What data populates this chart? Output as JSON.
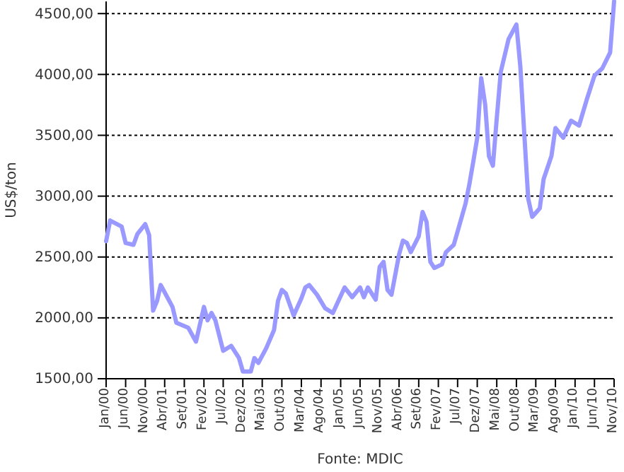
{
  "chart_data": {
    "type": "line",
    "ylabel": "US$/ton",
    "annotations": [
      "Fonte: MDIC"
    ],
    "xlim": [
      "2000-01",
      "2010-11"
    ],
    "xticks": [
      {
        "value": "2000-01",
        "label": "Jan/00"
      },
      {
        "value": "2000-06",
        "label": "Jun/00"
      },
      {
        "value": "2000-11",
        "label": "Nov/00"
      },
      {
        "value": "2001-04",
        "label": "Abr/01"
      },
      {
        "value": "2001-09",
        "label": "Set/01"
      },
      {
        "value": "2002-02",
        "label": "Fev/02"
      },
      {
        "value": "2002-07",
        "label": "Jul/02"
      },
      {
        "value": "2002-12",
        "label": "Dez/02"
      },
      {
        "value": "2003-05",
        "label": "Mai/03"
      },
      {
        "value": "2003-10",
        "label": "Out/03"
      },
      {
        "value": "2004-03",
        "label": "Mar/04"
      },
      {
        "value": "2004-08",
        "label": "Ago/04"
      },
      {
        "value": "2005-01",
        "label": "Jan/05"
      },
      {
        "value": "2005-06",
        "label": "Jun/05"
      },
      {
        "value": "2005-11",
        "label": "Nov/05"
      },
      {
        "value": "2006-04",
        "label": "Abr/06"
      },
      {
        "value": "2006-09",
        "label": "Set/06"
      },
      {
        "value": "2007-02",
        "label": "Fev/07"
      },
      {
        "value": "2007-07",
        "label": "Jul/07"
      },
      {
        "value": "2007-12",
        "label": "Dez/07"
      },
      {
        "value": "2008-05",
        "label": "Mai/08"
      },
      {
        "value": "2008-10",
        "label": "Out/08"
      },
      {
        "value": "2009-03",
        "label": "Mar/09"
      },
      {
        "value": "2009-08",
        "label": "Ago/09"
      },
      {
        "value": "2010-01",
        "label": "Jan/10"
      },
      {
        "value": "2010-06",
        "label": "Jun/10"
      },
      {
        "value": "2010-11",
        "label": "Nov/10"
      }
    ],
    "ylim": [
      1500,
      4600
    ],
    "yticks": [
      {
        "value": 1500,
        "label": "1500,00"
      },
      {
        "value": 2000,
        "label": "2000,00"
      },
      {
        "value": 2500,
        "label": "2500,00"
      },
      {
        "value": 3000,
        "label": "3000,00"
      },
      {
        "value": 3500,
        "label": "3500,00"
      },
      {
        "value": 4000,
        "label": "4000,00"
      },
      {
        "value": 4500,
        "label": "4500,00"
      }
    ],
    "grid": "y",
    "line_style": "solid",
    "series": [
      {
        "color": "#9999ff",
        "x": [
          "2000-01",
          "2000-02",
          "2000-05",
          "2000-06",
          "2000-08",
          "2000-09",
          "2000-11",
          "2000-12",
          "2001-01",
          "2001-02",
          "2001-03",
          "2001-04",
          "2001-06",
          "2001-07",
          "2001-10",
          "2001-12",
          "2002-02",
          "2002-03",
          "2002-04",
          "2002-05",
          "2002-07",
          "2002-09",
          "2002-11",
          "2002-12",
          "2003-02",
          "2003-03",
          "2003-04",
          "2003-06",
          "2003-08",
          "2003-09",
          "2003-10",
          "2003-11",
          "2004-01",
          "2004-03",
          "2004-04",
          "2004-05",
          "2004-07",
          "2004-09",
          "2004-11",
          "2005-02",
          "2005-04",
          "2005-06",
          "2005-07",
          "2005-08",
          "2005-10",
          "2005-11",
          "2005-12",
          "2006-01",
          "2006-02",
          "2006-04",
          "2006-05",
          "2006-06",
          "2006-07",
          "2006-09",
          "2006-10",
          "2006-11",
          "2006-12",
          "2007-01",
          "2007-03",
          "2007-04",
          "2007-06",
          "2007-07",
          "2007-09",
          "2007-10",
          "2007-11",
          "2007-12",
          "2008-01",
          "2008-02",
          "2008-03",
          "2008-04",
          "2008-05",
          "2008-06",
          "2008-08",
          "2008-10",
          "2008-11",
          "2008-12",
          "2009-01",
          "2009-02",
          "2009-04",
          "2009-05",
          "2009-07",
          "2009-08",
          "2009-10",
          "2009-12",
          "2010-02",
          "2010-04",
          "2010-06",
          "2010-08",
          "2010-10",
          "2010-11"
        ],
        "values": [
          2630,
          2800,
          2750,
          2615,
          2600,
          2690,
          2770,
          2680,
          2060,
          2140,
          2270,
          2210,
          2090,
          1960,
          1920,
          1805,
          2090,
          1980,
          2040,
          1980,
          1730,
          1770,
          1670,
          1560,
          1560,
          1670,
          1630,
          1750,
          1900,
          2140,
          2230,
          2200,
          2020,
          2160,
          2250,
          2270,
          2190,
          2080,
          2040,
          2250,
          2170,
          2250,
          2170,
          2250,
          2150,
          2420,
          2460,
          2230,
          2190,
          2520,
          2635,
          2615,
          2540,
          2670,
          2870,
          2790,
          2460,
          2410,
          2440,
          2540,
          2600,
          2710,
          2940,
          3100,
          3290,
          3480,
          3970,
          3750,
          3330,
          3250,
          3640,
          4020,
          4290,
          4410,
          4060,
          3520,
          2980,
          2830,
          2900,
          3140,
          3330,
          3560,
          3480,
          3620,
          3580,
          3790,
          3990,
          4050,
          4180,
          4600
        ]
      }
    ]
  }
}
